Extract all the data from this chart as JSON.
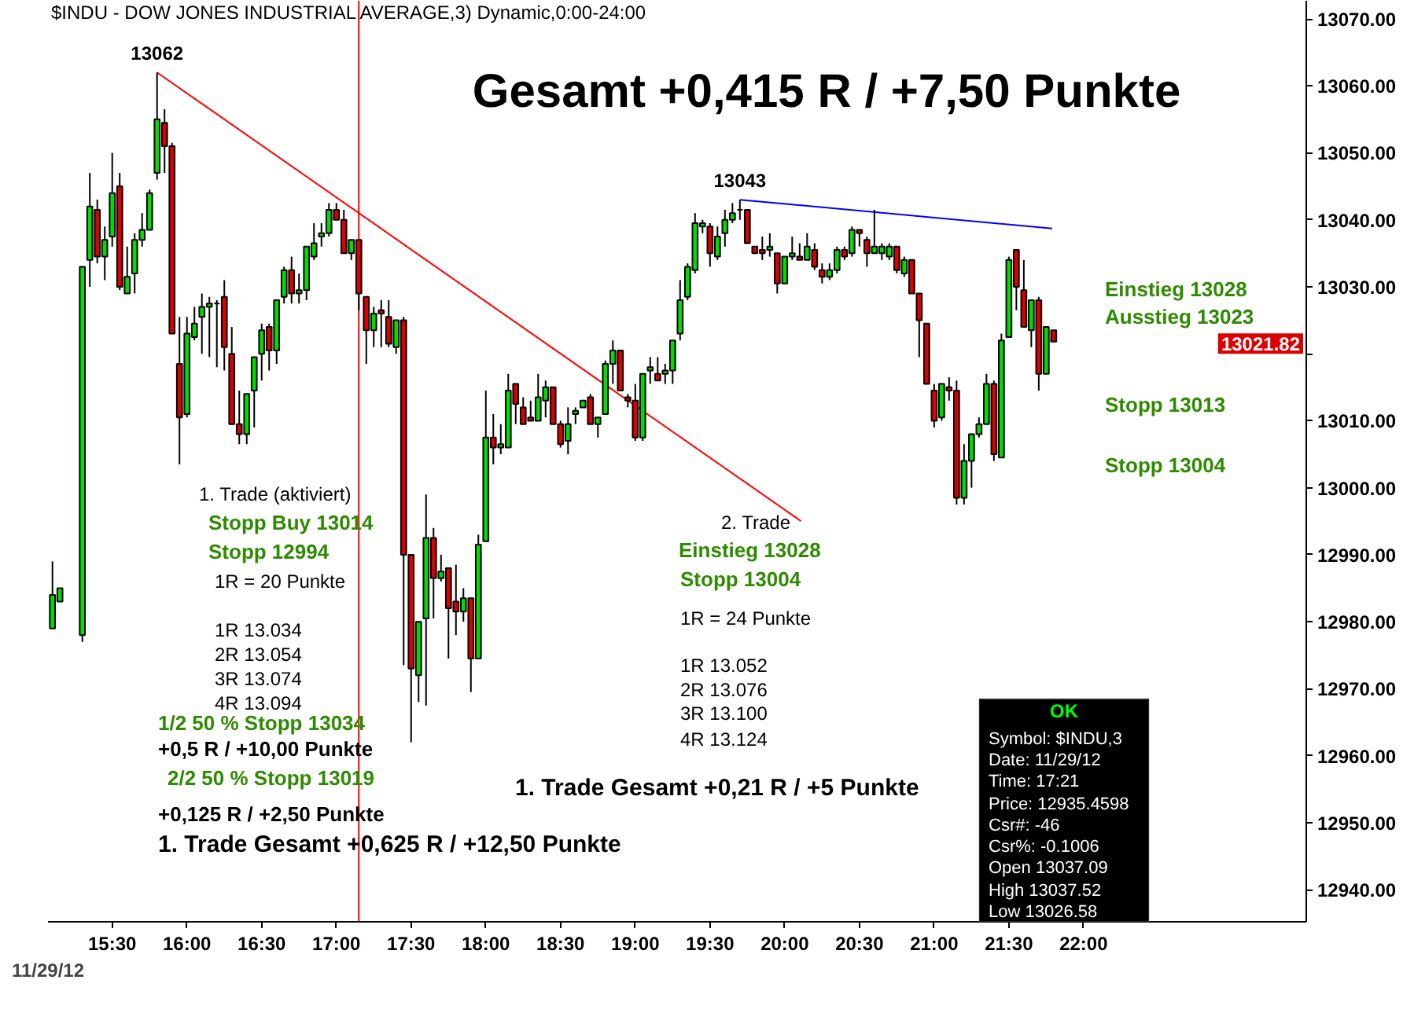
{
  "chart_data": {
    "type": "candlestick",
    "title": "Gesamt +0,415 R / +7,50 Punkte",
    "subtitle": "$INDU - DOW JONES INDUSTRIAL AVERAGE,3) Dynamic,0:00-24:00",
    "x": [
      15.1,
      15.15,
      15.3,
      15.35,
      15.4,
      15.45,
      15.5,
      15.55,
      15.6,
      15.65,
      15.7,
      15.75,
      15.8,
      15.85,
      15.9,
      15.95,
      16.0,
      16.05,
      16.1,
      16.15,
      16.2,
      16.25,
      16.3,
      16.35,
      16.4,
      16.45,
      16.5,
      16.55,
      16.6,
      16.65,
      16.7,
      16.75,
      16.8,
      16.85,
      16.9,
      16.95,
      17.0,
      17.05,
      17.1,
      17.15,
      17.2,
      17.25,
      17.3,
      17.35,
      17.4,
      17.45,
      17.5,
      17.55,
      17.6,
      17.65,
      17.7,
      17.75,
      17.8,
      17.85,
      17.9,
      17.95,
      18.0,
      18.05,
      18.1,
      18.15,
      18.2,
      18.25,
      18.3,
      18.35,
      18.4,
      18.45,
      18.5,
      18.55,
      18.6,
      18.65,
      18.7,
      18.75,
      18.8,
      18.85,
      18.9,
      18.95,
      19.0,
      19.05,
      19.1,
      19.15,
      19.2,
      19.25,
      19.3,
      19.35,
      19.4,
      19.45,
      19.5,
      19.55,
      19.6,
      19.65,
      19.7,
      19.75,
      19.8,
      19.85,
      19.9,
      19.95,
      20.0,
      20.05,
      20.1,
      20.15,
      20.2,
      20.25,
      20.3,
      20.35,
      20.4,
      20.45,
      20.5,
      20.55,
      20.6,
      20.65,
      20.7,
      20.75,
      20.8,
      20.85,
      20.9,
      20.95,
      21.0,
      21.05,
      21.1,
      21.15,
      21.2,
      21.25,
      21.3,
      21.35,
      21.4,
      21.45,
      21.5,
      21.55,
      21.6,
      21.65,
      21.7,
      21.75,
      21.8
    ],
    "ohlc": [
      [
        12979,
        12989,
        12979,
        12984
      ],
      [
        12983,
        12985,
        12983,
        12985
      ],
      [
        12978,
        13033,
        12977,
        13033
      ],
      [
        13034,
        13047,
        13030,
        13042
      ],
      [
        13041.5,
        13043,
        13033.5,
        13034.5
      ],
      [
        13034.5,
        13039,
        13031,
        13037
      ],
      [
        13037.5,
        13050,
        13036,
        13044
      ],
      [
        13045,
        13047,
        13029.5,
        13030
      ],
      [
        13029,
        13036,
        13029,
        13031.5
      ],
      [
        13032,
        13038,
        13029,
        13037
      ],
      [
        13037,
        13041,
        13036,
        13038.5
      ],
      [
        13038.5,
        13044.5,
        13038.5,
        13044
      ],
      [
        13047,
        13062,
        13046,
        13055
      ],
      [
        13054.5,
        13056.5,
        13047,
        13051
      ],
      [
        13051,
        13051.5,
        13023,
        13023
      ],
      [
        13018.5,
        13025.5,
        13003.5,
        13010.5
      ],
      [
        13011,
        13025.5,
        13010.5,
        13023
      ],
      [
        13022.5,
        13027,
        13022,
        13024.5
      ],
      [
        13025.5,
        13029,
        13020,
        13027
      ],
      [
        13027,
        13028.5,
        13019.5,
        13027.5
      ],
      [
        13027.5,
        13028,
        13018,
        13027.5
      ],
      [
        13028.5,
        13031,
        13017.5,
        13021
      ],
      [
        13020,
        13024,
        13009.5,
        13009.5
      ],
      [
        13009.5,
        13014.5,
        13006.5,
        13008
      ],
      [
        13008,
        13014,
        13006.5,
        13014
      ],
      [
        13014.5,
        13019.5,
        13009,
        13019.5
      ],
      [
        13020,
        13024.5,
        13016,
        13023.5
      ],
      [
        13024,
        13024.5,
        13017.5,
        13020.5
      ],
      [
        13020.5,
        13028,
        13018.5,
        13028
      ],
      [
        13028.5,
        13033,
        13027.5,
        13032.5
      ],
      [
        13032.5,
        13034.5,
        13027.5,
        13029
      ],
      [
        13029,
        13032,
        13027.5,
        13029.5
      ],
      [
        13029.5,
        13036,
        13028,
        13036
      ],
      [
        13034.5,
        13039.5,
        13034,
        13036.5
      ],
      [
        13037.5,
        13039.5,
        13036,
        13038
      ],
      [
        13038,
        13042.5,
        13037.5,
        13041.5
      ],
      [
        13041.5,
        13042.5,
        13040,
        13040
      ],
      [
        13040,
        13041.5,
        13035,
        13035
      ],
      [
        13035,
        13037,
        13034,
        13037
      ],
      [
        13037,
        13037,
        13026.5,
        13029
      ],
      [
        13028.5,
        13028.5,
        13018.5,
        13023.5
      ],
      [
        13023.5,
        13027,
        13021,
        13026
      ],
      [
        13026.5,
        13028,
        13021,
        13026
      ],
      [
        13025.5,
        13028,
        13021,
        13021.5
      ],
      [
        13021,
        13025,
        13020,
        13025
      ],
      [
        13025,
        13025.5,
        12973.5,
        12990
      ],
      [
        12990,
        12990,
        12962,
        12973
      ],
      [
        12972,
        12980,
        12968,
        12980
      ],
      [
        12980.5,
        12999,
        12967.5,
        12992.5
      ],
      [
        12992.5,
        12994,
        12980.5,
        12986.5
      ],
      [
        12986.5,
        12990,
        12986,
        12987.5
      ],
      [
        12988,
        12988,
        12974.5,
        12982
      ],
      [
        12983,
        12988.5,
        12978,
        12981.5
      ],
      [
        12981.5,
        12985,
        12980,
        12983.5
      ],
      [
        12983.5,
        12983.5,
        12969.5,
        12974.5
      ],
      [
        12974.5,
        12993,
        12974.5,
        12991.5
      ],
      [
        12992,
        13014.5,
        12992,
        13007.5
      ],
      [
        13007.5,
        13011,
        13003.5,
        13006
      ],
      [
        13006,
        13009.5,
        13005,
        13006.5
      ],
      [
        13006,
        13017,
        13006,
        13014.5
      ],
      [
        13015.5,
        13015.5,
        13009.5,
        13012.5
      ],
      [
        13012,
        13013.5,
        13009.5,
        13009.5
      ],
      [
        13010.5,
        13013,
        13010,
        13010
      ],
      [
        13010,
        13017,
        13010,
        13013.5
      ],
      [
        13013,
        13016,
        13010.5,
        13015
      ],
      [
        13015,
        13015,
        13009.5,
        13009.5
      ],
      [
        13009.5,
        13010,
        13006,
        13006.5
      ],
      [
        13007,
        13012,
        13005,
        13009.5
      ],
      [
        13011,
        13012,
        13009.5,
        13011.5
      ],
      [
        13012,
        13013,
        13012,
        13013
      ],
      [
        13013.5,
        13014,
        13009.5,
        13009.5
      ],
      [
        13009.5,
        13010.5,
        13007.5,
        13010.5
      ],
      [
        13011,
        13019,
        13011,
        13018.5
      ],
      [
        13018.5,
        13022,
        13015.5,
        13020.5
      ],
      [
        13020.5,
        13020.5,
        13014.5,
        13014.5
      ],
      [
        13013.5,
        13014,
        13012,
        13013
      ],
      [
        13013,
        13015.5,
        13007,
        13007.5
      ],
      [
        13007.5,
        13017,
        13007,
        13017
      ],
      [
        13017.5,
        13019.5,
        13015.5,
        13018
      ],
      [
        13017,
        13019.5,
        13016,
        13016
      ],
      [
        13017,
        13018.5,
        13015.5,
        13017.5
      ],
      [
        13017.5,
        13022,
        13015.5,
        13022
      ],
      [
        13023,
        13031,
        13022,
        13028
      ],
      [
        13028.5,
        13033.5,
        13028,
        13033
      ],
      [
        13032.5,
        13041,
        13032,
        13039.5
      ],
      [
        13039,
        13040,
        13038,
        13039.5
      ],
      [
        13039,
        13039.5,
        13033,
        13035
      ],
      [
        13034.5,
        13039,
        13034,
        13037.5
      ],
      [
        13038,
        13041.5,
        13036,
        13040
      ],
      [
        13040,
        13042.5,
        13039.5,
        13041
      ],
      [
        13041.5,
        13043,
        13040,
        13041.5
      ],
      [
        13041.5,
        13041.5,
        13036.5,
        13036.5
      ],
      [
        13036,
        13036,
        13035,
        13035
      ],
      [
        13035.5,
        13037.5,
        13034,
        13035
      ],
      [
        13035.5,
        13038,
        13034.5,
        13036
      ],
      [
        13035,
        13035,
        13029,
        13030.5
      ],
      [
        13030.5,
        13034.5,
        13030.5,
        13034.5
      ],
      [
        13034.5,
        13037.5,
        13034,
        13035
      ],
      [
        13034.5,
        13036.5,
        13034,
        13034
      ],
      [
        13034,
        13038,
        13034,
        13036
      ],
      [
        13035.5,
        13036.5,
        13032.5,
        13033
      ],
      [
        13032.5,
        13033.5,
        13030.5,
        13031.5
      ],
      [
        13031.5,
        13033.5,
        13031,
        13032.5
      ],
      [
        13032.5,
        13036,
        13032,
        13035.5
      ],
      [
        13035.5,
        13036,
        13034,
        13034.5
      ],
      [
        13035,
        13039,
        13034.5,
        13038.5
      ],
      [
        13038.5,
        13038.5,
        13036,
        13038
      ],
      [
        13037,
        13037.5,
        13033,
        13035
      ],
      [
        13035,
        13041.5,
        13035,
        13036
      ],
      [
        13035,
        13036.5,
        13034,
        13036
      ],
      [
        13034.5,
        13036.5,
        13034,
        13036
      ],
      [
        13036,
        13036,
        13032,
        13032.5
      ],
      [
        13032,
        13034.5,
        13031.5,
        13034
      ],
      [
        13034,
        13034,
        13029,
        13029
      ],
      [
        13029,
        13029,
        13019.5,
        13025
      ],
      [
        13024.5,
        13024.5,
        13015.5,
        13015.5
      ],
      [
        13014.5,
        13015.5,
        13009,
        13010
      ],
      [
        13010.5,
        13015.5,
        13010,
        13015.5
      ],
      [
        13015,
        13016.5,
        13013,
        13014.5
      ],
      [
        13014.5,
        13016,
        12997.5,
        12998.5
      ],
      [
        12998.5,
        13006.5,
        12997.5,
        13004
      ],
      [
        13004,
        13008,
        13000,
        13008
      ],
      [
        13008,
        13010.5,
        13007.5,
        13009.5
      ],
      [
        13009.5,
        13017,
        13009.5,
        13015.5
      ],
      [
        13015.5,
        13016,
        13004,
        13005
      ],
      [
        13004.5,
        13023,
        13004.5,
        13022
      ],
      [
        13022.5,
        13034.5,
        13022.5,
        13034
      ],
      [
        13035.5,
        13035.5,
        13026.5,
        13030
      ],
      [
        13029.5,
        13034,
        13024,
        13024
      ],
      [
        13023.5,
        13028,
        13021,
        13028
      ],
      [
        13028,
        13028.5,
        13014.5,
        13017
      ],
      [
        13017,
        13024,
        13017,
        13024
      ],
      [
        13023.5,
        13023.5,
        13021.82,
        13021.82
      ]
    ],
    "xlabel": "11/29/12",
    "series": [
      {
        "type": "line",
        "x": [
          15.8,
          20.11
        ],
        "values": [
          13062,
          12995
        ],
        "color": "#ff0000"
      },
      {
        "type": "line",
        "x": [
          19.7,
          21.79
        ],
        "values": [
          13043,
          13038.7
        ],
        "color": "#0000ff"
      }
    ],
    "ref_lines": [
      {
        "axis": "x",
        "value": 17.15,
        "color": "#ff0000"
      }
    ],
    "xlim": [
      15.07,
      23.49
    ],
    "xticks": [
      {
        "value": 15.5,
        "label": "15:30"
      },
      {
        "value": 16,
        "label": "16:00"
      },
      {
        "value": 16.5,
        "label": "16:30"
      },
      {
        "value": 17,
        "label": "17:00"
      },
      {
        "value": 17.5,
        "label": "17:30"
      },
      {
        "value": 18,
        "label": "18:00"
      },
      {
        "value": 18.5,
        "label": "18:30"
      },
      {
        "value": 19,
        "label": "19:00"
      },
      {
        "value": 19.5,
        "label": "19:30"
      },
      {
        "value": 20,
        "label": "20:00"
      },
      {
        "value": 20.5,
        "label": "20:30"
      },
      {
        "value": 21,
        "label": "21:00"
      },
      {
        "value": 21.5,
        "label": "21:30"
      },
      {
        "value": 22,
        "label": "22:00"
      }
    ],
    "ylim": [
      12935.2,
      13072.7
    ],
    "yticks": [
      {
        "value": 12940,
        "label": "12940.00"
      },
      {
        "value": 12950,
        "label": "12950.00"
      },
      {
        "value": 12960,
        "label": "12960.00"
      },
      {
        "value": 12970,
        "label": "12970.00"
      },
      {
        "value": 12980,
        "label": "12980.00"
      },
      {
        "value": 12990,
        "label": "12990.00"
      },
      {
        "value": 13000,
        "label": "13000.00"
      },
      {
        "value": 13010,
        "label": "13010.00"
      },
      {
        "value": 13020,
        "label": null
      },
      {
        "value": 13030,
        "label": "13030.00"
      },
      {
        "value": 13040,
        "label": "13040.00"
      },
      {
        "value": 13050,
        "label": "13050.00"
      },
      {
        "value": 13060,
        "label": "13060.00"
      },
      {
        "value": 13070,
        "label": "13070.00"
      }
    ],
    "grid": false,
    "annotations": [
      "1. Trade (aktiviert)",
      "Stopp Buy 13014",
      "Stopp  12994",
      "1R = 20 Punkte",
      "1R 13.034",
      "2R 13.054",
      "3R 13.074",
      "4R 13.094",
      "1/2 50 % Stopp  13034",
      "+0,5 R / +10,00 Punkte",
      "2/2 50 % Stopp  13019",
      "+0,125 R / +2,50 Punkte",
      "1. Trade Gesamt +0,625 R / +12,50 Punkte",
      "2. Trade",
      "Einstieg 13028",
      "Stopp  13004",
      "1R = 24 Punkte",
      "1R 13.052",
      "2R 13.076",
      "3R 13.100",
      "4R 13.124",
      "1. Trade Gesamt +0,21 R / +5 Punkte",
      "Einstieg 13028",
      "Ausstieg  13023",
      "Stopp  13013",
      "Stopp  13004",
      "OK",
      "Symbol: $INDU,3",
      "Date: 11/29/12",
      "Time: 17:21",
      "Price: 12935.4598",
      "Csr#: -46",
      "Csr%: -0.1006",
      "Open 13037.09",
      "High 13037.52",
      "Low 13026.58",
      {
        "text": "13062",
        "x": 15.8,
        "y": 13062
      },
      {
        "text": "13043",
        "x": 19.7,
        "y": 13043
      },
      "13021.82"
    ]
  }
}
